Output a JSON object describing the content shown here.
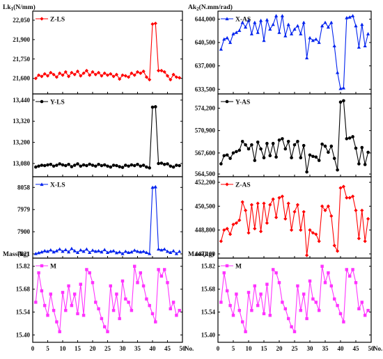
{
  "chart_data": [
    {
      "type": "line",
      "side": "left",
      "panel": 0,
      "ylabel": "Lk",
      "ylabel_sub": "1",
      "ylabel_tail": "(N/mm)",
      "legend": "Z-LS",
      "color": "#ff0000",
      "marker": "diamond",
      "ylim": [
        21480,
        22120
      ],
      "yticks": [
        21600,
        21750,
        21900,
        22050
      ],
      "ytick_labels": [
        "21,600",
        "21,750",
        "21,900",
        "22,050"
      ],
      "x": [
        1,
        2,
        3,
        4,
        5,
        6,
        7,
        8,
        9,
        10,
        11,
        12,
        13,
        14,
        15,
        16,
        17,
        18,
        19,
        20,
        21,
        22,
        23,
        24,
        25,
        26,
        27,
        28,
        29,
        30,
        31,
        32,
        33,
        34,
        35,
        36,
        37,
        38,
        39,
        40,
        41,
        42,
        43,
        44,
        45,
        46,
        47,
        48,
        49
      ],
      "values": [
        21600,
        21625,
        21615,
        21635,
        21620,
        21645,
        21630,
        21610,
        21640,
        21625,
        21650,
        21615,
        21645,
        21630,
        21655,
        21620,
        21640,
        21660,
        21625,
        21650,
        21630,
        21645,
        21620,
        21640,
        21625,
        21635,
        21615,
        21630,
        21595,
        21625,
        21620,
        21610,
        21640,
        21625,
        21650,
        21640,
        21655,
        21610,
        21590,
        22020,
        22025,
        21660,
        21660,
        21650,
        21620,
        21590,
        21630,
        21610,
        21605
      ]
    },
    {
      "type": "line",
      "side": "left",
      "panel": 1,
      "ylabel": "",
      "legend": "Y-LS",
      "color": "#000000",
      "marker": "circle",
      "ylim": [
        13005,
        13475
      ],
      "yticks": [
        13080,
        13200,
        13320,
        13440
      ],
      "ytick_labels": [
        "13,080",
        "13,200",
        "13,320",
        "13,440"
      ],
      "x": [
        1,
        2,
        3,
        4,
        5,
        6,
        7,
        8,
        9,
        10,
        11,
        12,
        13,
        14,
        15,
        16,
        17,
        18,
        19,
        20,
        21,
        22,
        23,
        24,
        25,
        26,
        27,
        28,
        29,
        30,
        31,
        32,
        33,
        34,
        35,
        36,
        37,
        38,
        39,
        40,
        41,
        42,
        43,
        44,
        45,
        46,
        47,
        48,
        49
      ],
      "values": [
        13060,
        13065,
        13070,
        13068,
        13072,
        13075,
        13065,
        13070,
        13078,
        13072,
        13068,
        13075,
        13062,
        13070,
        13078,
        13065,
        13072,
        13068,
        13076,
        13070,
        13065,
        13075,
        13068,
        13072,
        13065,
        13060,
        13070,
        13068,
        13062,
        13058,
        13070,
        13065,
        13072,
        13068,
        13075,
        13065,
        13070,
        13060,
        13055,
        13400,
        13402,
        13080,
        13082,
        13075,
        13078,
        13065,
        13060,
        13070,
        13068
      ]
    },
    {
      "type": "line",
      "side": "left",
      "panel": 2,
      "ylabel": "",
      "legend": "X-LS",
      "color": "#0022ee",
      "marker": "triangle",
      "ylim": [
        7806,
        8096
      ],
      "yticks": [
        7821,
        7900,
        7979,
        8058
      ],
      "ytick_labels": [
        "7821",
        "7900",
        "7979",
        "8058"
      ],
      "x": [
        1,
        2,
        3,
        4,
        5,
        6,
        7,
        8,
        9,
        10,
        11,
        12,
        13,
        14,
        15,
        16,
        17,
        18,
        19,
        20,
        21,
        22,
        23,
        24,
        25,
        26,
        27,
        28,
        29,
        30,
        31,
        32,
        33,
        34,
        35,
        36,
        37,
        38,
        39,
        40,
        41,
        42,
        43,
        44,
        45,
        46,
        47,
        48,
        49
      ],
      "values": [
        7822,
        7825,
        7828,
        7832,
        7830,
        7835,
        7828,
        7832,
        7838,
        7830,
        7836,
        7828,
        7840,
        7832,
        7826,
        7835,
        7830,
        7838,
        7826,
        7834,
        7830,
        7832,
        7828,
        7836,
        7826,
        7830,
        7832,
        7825,
        7828,
        7822,
        7830,
        7826,
        7828,
        7834,
        7830,
        7828,
        7830,
        7826,
        7822,
        8058,
        8060,
        7838,
        7835,
        7838,
        7830,
        7826,
        7832,
        7822,
        7830
      ]
    },
    {
      "type": "line",
      "side": "left",
      "panel": 3,
      "ylabel": "Mass(kg)",
      "legend": "M",
      "color": "#ff33ff",
      "marker": "square",
      "ylim": [
        15.355,
        15.87
      ],
      "yticks": [
        15.4,
        15.54,
        15.68,
        15.82
      ],
      "ytick_labels": [
        "15.40",
        "15.54",
        "15.68",
        "15.82"
      ],
      "xlim": [
        0,
        50
      ],
      "xticks": [
        0,
        5,
        10,
        15,
        20,
        25,
        30,
        35,
        40,
        45,
        50
      ],
      "xlabel": "No.",
      "x": [
        1,
        2,
        3,
        4,
        5,
        6,
        7,
        8,
        9,
        10,
        11,
        12,
        13,
        14,
        15,
        16,
        17,
        18,
        19,
        20,
        21,
        22,
        23,
        24,
        25,
        26,
        27,
        28,
        29,
        30,
        31,
        32,
        33,
        34,
        35,
        36,
        37,
        38,
        39,
        40,
        41,
        42,
        43,
        44,
        45,
        46,
        47,
        48,
        49
      ],
      "values": [
        15.6,
        15.78,
        15.67,
        15.58,
        15.52,
        15.65,
        15.55,
        15.48,
        15.42,
        15.66,
        15.55,
        15.7,
        15.58,
        15.65,
        15.53,
        15.71,
        15.52,
        15.8,
        15.78,
        15.72,
        15.6,
        15.56,
        15.5,
        15.45,
        15.42,
        15.7,
        15.55,
        15.65,
        15.5,
        15.73,
        15.62,
        15.6,
        15.55,
        15.82,
        15.72,
        15.78,
        15.7,
        15.62,
        15.58,
        15.53,
        15.48,
        15.8,
        15.76,
        15.8,
        15.72,
        15.56,
        15.6,
        15.52,
        15.55
      ]
    },
    {
      "type": "line",
      "side": "right",
      "panel": 0,
      "ylabel": "Ak",
      "ylabel_sub": "2",
      "ylabel_tail": "(N.mm/rad)",
      "legend": "X-AS",
      "color": "#0022ee",
      "marker": "triangle",
      "ylim": [
        632800,
        645200
      ],
      "yticks": [
        633500,
        637000,
        640500,
        644000
      ],
      "ytick_labels": [
        "633,500",
        "637,000",
        "640,500",
        "644,000"
      ],
      "x": [
        1,
        2,
        3,
        4,
        5,
        6,
        7,
        8,
        9,
        10,
        11,
        12,
        13,
        14,
        15,
        16,
        17,
        18,
        19,
        20,
        21,
        22,
        23,
        24,
        25,
        26,
        27,
        28,
        29,
        30,
        31,
        32,
        33,
        34,
        35,
        36,
        37,
        38,
        39,
        40,
        41,
        42,
        43,
        44,
        45,
        46,
        47,
        48,
        49
      ],
      "values": [
        639500,
        641000,
        641200,
        640500,
        641800,
        642000,
        642300,
        643500,
        642800,
        643800,
        641800,
        643500,
        642000,
        643800,
        640800,
        643900,
        642500,
        643200,
        644500,
        642000,
        644500,
        641500,
        643200,
        641800,
        642500,
        643000,
        641800,
        643500,
        638200,
        641200,
        640800,
        641000,
        640500,
        643000,
        643500,
        642800,
        643500,
        640000,
        636000,
        633600,
        633700,
        644200,
        644300,
        644500,
        643000,
        639800,
        643200,
        640000,
        641800
      ]
    },
    {
      "type": "line",
      "side": "right",
      "panel": 1,
      "ylabel": "",
      "legend": "Y-AS",
      "color": "#000000",
      "marker": "circle",
      "ylim": [
        564100,
        576300
      ],
      "yticks": [
        564500,
        567600,
        570900,
        574200
      ],
      "ytick_labels": [
        "564,500",
        "567,600",
        "570,900",
        "574,200"
      ],
      "x": [
        1,
        2,
        3,
        4,
        5,
        6,
        7,
        8,
        9,
        10,
        11,
        12,
        13,
        14,
        15,
        16,
        17,
        18,
        19,
        20,
        21,
        22,
        23,
        24,
        25,
        26,
        27,
        28,
        29,
        30,
        31,
        32,
        33,
        34,
        35,
        36,
        37,
        38,
        39,
        40,
        41,
        42,
        43,
        44,
        45,
        46,
        47,
        48,
        49
      ],
      "values": [
        566000,
        567200,
        567300,
        566800,
        567600,
        567800,
        568000,
        569300,
        568800,
        568200,
        568800,
        566500,
        569200,
        568200,
        566900,
        569000,
        567200,
        569000,
        567000,
        569500,
        569700,
        568200,
        569300,
        566900,
        568800,
        569300,
        566900,
        568700,
        564800,
        567300,
        567100,
        567000,
        566500,
        568900,
        568600,
        567700,
        568600,
        566800,
        565100,
        575100,
        575300,
        569700,
        569800,
        570000,
        568300,
        566000,
        568400,
        565900,
        567700
      ]
    },
    {
      "type": "line",
      "side": "right",
      "panel": 2,
      "ylabel": "",
      "legend": "Z-AS",
      "color": "#ff0000",
      "marker": "diamond",
      "ylim": [
        446800,
        452600
      ],
      "yticks": [
        447100,
        448800,
        450500,
        452200
      ],
      "ytick_labels": [
        "447,100",
        "448,800",
        "450,500",
        "452,200"
      ],
      "x": [
        1,
        2,
        3,
        4,
        5,
        6,
        7,
        8,
        9,
        10,
        11,
        12,
        13,
        14,
        15,
        16,
        17,
        18,
        19,
        20,
        21,
        22,
        23,
        24,
        25,
        26,
        27,
        28,
        29,
        30,
        31,
        32,
        33,
        34,
        35,
        36,
        37,
        38,
        39,
        40,
        41,
        42,
        43,
        44,
        45,
        46,
        47,
        48,
        49
      ],
      "values": [
        448000,
        448800,
        448900,
        448500,
        449200,
        449300,
        449500,
        450800,
        450200,
        448600,
        450600,
        448900,
        450700,
        448700,
        450700,
        449300,
        450600,
        451000,
        449700,
        451100,
        451200,
        449600,
        450700,
        448800,
        450100,
        450600,
        448800,
        450100,
        447000,
        448800,
        448600,
        448500,
        448000,
        450500,
        450200,
        450500,
        449800,
        447700,
        447300,
        451800,
        451900,
        451100,
        451100,
        451200,
        450200,
        448200,
        450200,
        448000,
        449600
      ]
    },
    {
      "type": "line",
      "side": "right",
      "panel": 3,
      "ylabel": "Mass(kg)",
      "legend": "M",
      "color": "#ff33ff",
      "marker": "square",
      "ylim": [
        15.355,
        15.87
      ],
      "yticks": [
        15.4,
        15.54,
        15.68,
        15.82
      ],
      "ytick_labels": [
        "15.40",
        "15.54",
        "15.68",
        "15.82"
      ],
      "xlim": [
        0,
        50
      ],
      "xticks": [
        0,
        5,
        10,
        15,
        20,
        25,
        30,
        35,
        40,
        45,
        50
      ],
      "xlabel": "No.",
      "x": [
        1,
        2,
        3,
        4,
        5,
        6,
        7,
        8,
        9,
        10,
        11,
        12,
        13,
        14,
        15,
        16,
        17,
        18,
        19,
        20,
        21,
        22,
        23,
        24,
        25,
        26,
        27,
        28,
        29,
        30,
        31,
        32,
        33,
        34,
        35,
        36,
        37,
        38,
        39,
        40,
        41,
        42,
        43,
        44,
        45,
        46,
        47,
        48,
        49
      ],
      "values": [
        15.6,
        15.78,
        15.67,
        15.58,
        15.52,
        15.65,
        15.55,
        15.48,
        15.42,
        15.66,
        15.55,
        15.7,
        15.58,
        15.65,
        15.53,
        15.71,
        15.52,
        15.8,
        15.78,
        15.72,
        15.6,
        15.56,
        15.5,
        15.45,
        15.42,
        15.7,
        15.55,
        15.65,
        15.5,
        15.73,
        15.62,
        15.6,
        15.55,
        15.82,
        15.72,
        15.78,
        15.7,
        15.62,
        15.58,
        15.53,
        15.48,
        15.8,
        15.76,
        15.8,
        15.72,
        15.56,
        15.6,
        15.52,
        15.55
      ]
    }
  ]
}
